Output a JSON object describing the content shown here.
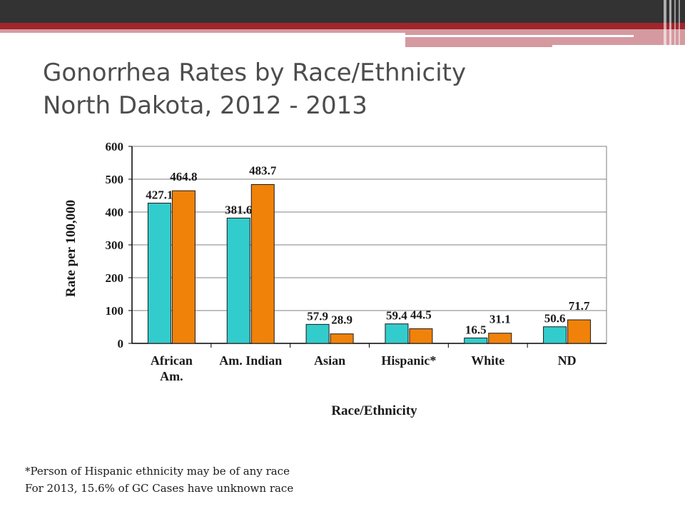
{
  "slide": {
    "title_line1": "Gonorrhea Rates by Race/Ethnicity",
    "title_line2": "North Dakota, 2012 - 2013",
    "footnote_line1": "*Person of Hispanic ethnicity may be of any race",
    "footnote_line2": "For 2013, 15.6% of GC Cases have unknown race"
  },
  "colors": {
    "series_2012": "#33cccc",
    "series_2013": "#f0820a",
    "banner_dark": "#333333",
    "banner_red": "#a0262d",
    "banner_pink": "#d59aa0"
  },
  "chart_data": {
    "type": "bar",
    "title": "",
    "xlabel": "Race/Ethnicity",
    "ylabel": "Rate per 100,000",
    "ylim": [
      0,
      600
    ],
    "yticks": [
      0,
      100,
      200,
      300,
      400,
      500,
      600
    ],
    "grid": true,
    "legend": "none",
    "categories": [
      [
        "African",
        "Am."
      ],
      [
        "Am. Indian"
      ],
      [
        "Asian"
      ],
      [
        "Hispanic*"
      ],
      [
        "White"
      ],
      [
        "ND"
      ]
    ],
    "series": [
      {
        "values": [
          427.1,
          381.6,
          57.9,
          59.4,
          16.5,
          50.6
        ],
        "labels": [
          "427.1",
          "381.6",
          "57.9",
          "59.4",
          "16.5",
          "50.6"
        ]
      },
      {
        "values": [
          464.8,
          483.7,
          28.9,
          44.5,
          31.1,
          71.7
        ],
        "labels": [
          "464.8",
          "483.7",
          "28.9",
          "44.5",
          "31.1",
          "71.7"
        ]
      }
    ]
  }
}
